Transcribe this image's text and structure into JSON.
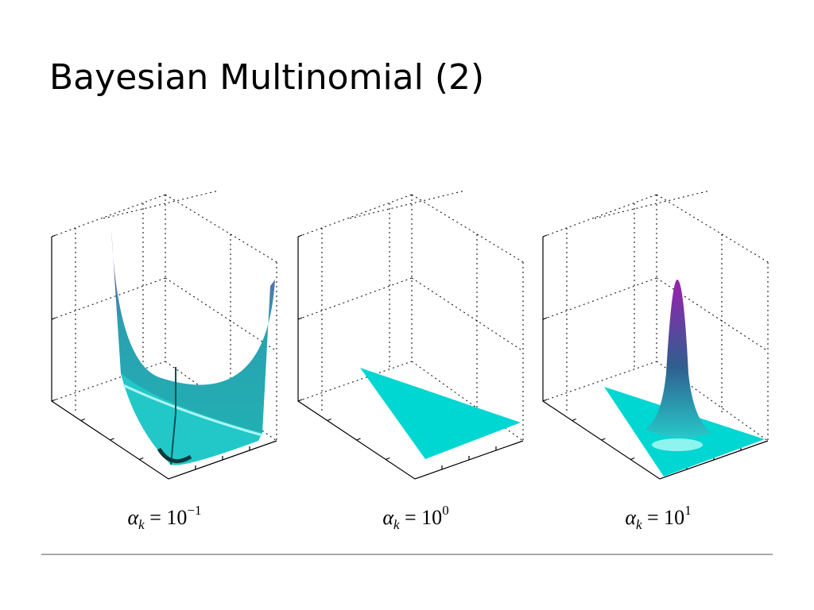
{
  "slide": {
    "title": "Bayesian Multinomial (2)",
    "captions": [
      {
        "symbol": "α",
        "subscript": "k",
        "equals": " = 10",
        "exponent": "−1"
      },
      {
        "symbol": "α",
        "subscript": "k",
        "equals": " = 10",
        "exponent": "0"
      },
      {
        "symbol": "α",
        "subscript": "k",
        "equals": " = 10",
        "exponent": "1"
      }
    ]
  }
}
